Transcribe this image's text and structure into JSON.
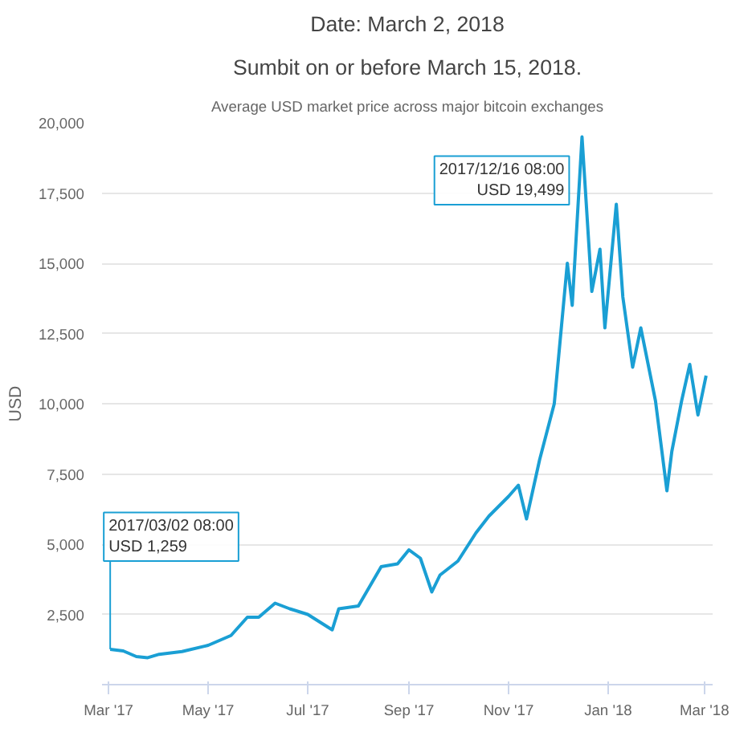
{
  "chart_data": {
    "type": "line",
    "title": "Date: March 2, 2018",
    "subtitle": "Sumbit on or before March 15, 2018.",
    "ylabel": "USD",
    "annotations": [
      "Average USD market price across major bitcoin exchanges",
      {
        "text": "2017/03/02 08:00\nUSD 1,259",
        "x": "2017-03-02",
        "y": 1259
      },
      {
        "text": "2017/12/16 08:00\nUSD 19,499",
        "x": "2017-12-16",
        "y": 19499
      }
    ],
    "x": [
      "2017-03-02",
      "2017-03-10",
      "2017-03-18",
      "2017-03-25",
      "2017-04-01",
      "2017-04-15",
      "2017-05-01",
      "2017-05-15",
      "2017-05-25",
      "2017-06-01",
      "2017-06-11",
      "2017-06-20",
      "2017-07-01",
      "2017-07-16",
      "2017-07-20",
      "2017-08-01",
      "2017-08-15",
      "2017-08-25",
      "2017-09-01",
      "2017-09-08",
      "2017-09-15",
      "2017-09-20",
      "2017-10-01",
      "2017-10-12",
      "2017-10-20",
      "2017-11-01",
      "2017-11-07",
      "2017-11-12",
      "2017-11-20",
      "2017-11-29",
      "2017-12-07",
      "2017-12-10",
      "2017-12-16",
      "2017-12-22",
      "2017-12-27",
      "2017-12-30",
      "2018-01-06",
      "2018-01-10",
      "2018-01-16",
      "2018-01-21",
      "2018-01-30",
      "2018-02-06",
      "2018-02-09",
      "2018-02-15",
      "2018-02-20",
      "2018-02-25",
      "2018-03-02"
    ],
    "series": [
      {
        "color": "#1a9fd4",
        "values": [
          1259,
          1200,
          1000,
          960,
          1080,
          1180,
          1400,
          1750,
          2400,
          2400,
          2900,
          2700,
          2500,
          1950,
          2700,
          2800,
          4200,
          4300,
          4800,
          4500,
          3300,
          3900,
          4400,
          5400,
          6000,
          6700,
          7100,
          5900,
          8000,
          10000,
          15000,
          13500,
          19499,
          14000,
          15500,
          12700,
          17100,
          13800,
          11300,
          12700,
          10100,
          6900,
          8300,
          10100,
          11400,
          9600,
          11000
        ]
      }
    ],
    "xlim": [
      "2017-02-25",
      "2018-03-06"
    ],
    "xticks": [
      {
        "value": "2017-03-01",
        "label": "Mar '17"
      },
      {
        "value": "2017-05-01",
        "label": "May '17"
      },
      {
        "value": "2017-07-01",
        "label": "Jul '17"
      },
      {
        "value": "2017-09-01",
        "label": "Sep '17"
      },
      {
        "value": "2017-11-01",
        "label": "Nov '17"
      },
      {
        "value": "2018-01-01",
        "label": "Jan '18"
      },
      {
        "value": "2018-03-01",
        "label": "Mar '18"
      }
    ],
    "ylim": [
      0,
      20000
    ],
    "yticks": [
      {
        "value": 2500,
        "label": "2,500"
      },
      {
        "value": 5000,
        "label": "5,000"
      },
      {
        "value": 7500,
        "label": "7,500"
      },
      {
        "value": 10000,
        "label": "10,000"
      },
      {
        "value": 12500,
        "label": "12,500"
      },
      {
        "value": 15000,
        "label": "15,000"
      },
      {
        "value": 17500,
        "label": "17,500"
      },
      {
        "value": 20000,
        "label": "20,000"
      }
    ],
    "grid": "y",
    "marker": "none",
    "line_style": "solid"
  }
}
